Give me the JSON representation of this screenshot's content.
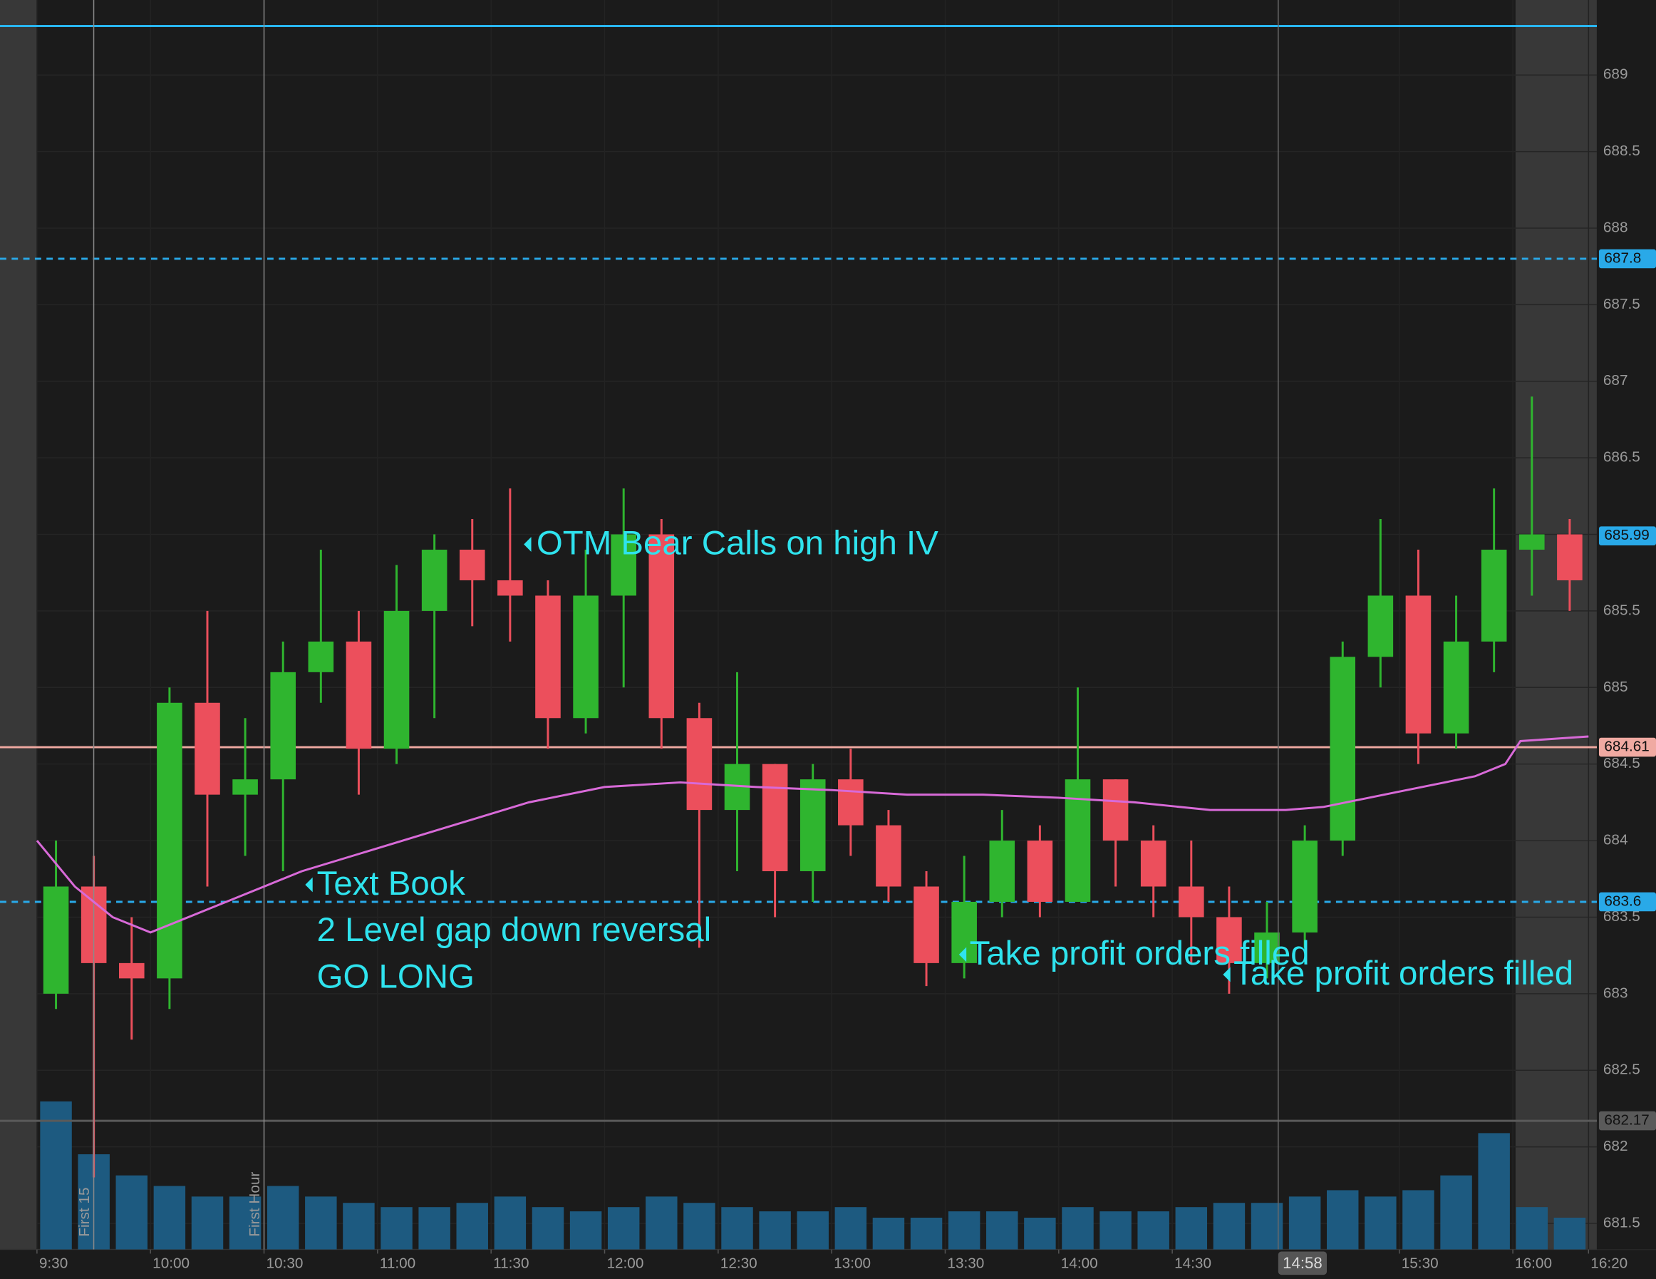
{
  "chart_data": {
    "type": "candlestick",
    "xlim": [
      560.23,
      982.2
    ],
    "ylim": [
      681.33,
      689.49
    ],
    "xticks": [
      {
        "value": 570,
        "label": "9:30"
      },
      {
        "value": 600,
        "label": "10:00"
      },
      {
        "value": 630,
        "label": "10:30"
      },
      {
        "value": 660,
        "label": "11:00"
      },
      {
        "value": 690,
        "label": "11:30"
      },
      {
        "value": 720,
        "label": "12:00"
      },
      {
        "value": 750,
        "label": "12:30"
      },
      {
        "value": 780,
        "label": "13:00"
      },
      {
        "value": 810,
        "label": "13:30"
      },
      {
        "value": 840,
        "label": "14:00"
      },
      {
        "value": 870,
        "label": "14:30"
      },
      {
        "value": 930,
        "label": "15:30"
      },
      {
        "value": 960,
        "label": "16:00"
      },
      {
        "value": 980,
        "label": "16:20"
      }
    ],
    "yticks": [
      681.5,
      682,
      682.5,
      683,
      683.5,
      684,
      684.5,
      685,
      685.5,
      686,
      686.5,
      687,
      687.5,
      688,
      688.5,
      689
    ],
    "grid": true,
    "up_color": "#2fb52f",
    "down_color": "#ec4f5c",
    "volume_color": "#1d5a80",
    "vlim": [
      0,
      100
    ],
    "candles": {
      "x": [
        570,
        580,
        590,
        600,
        610,
        620,
        630,
        640,
        650,
        660,
        670,
        680,
        690,
        700,
        710,
        720,
        730,
        740,
        750,
        760,
        770,
        780,
        790,
        800,
        810,
        820,
        830,
        840,
        850,
        860,
        870,
        880,
        890,
        900,
        910,
        920,
        930,
        940,
        950,
        960,
        970
      ],
      "open": [
        683.0,
        683.7,
        683.2,
        683.1,
        684.9,
        684.3,
        684.4,
        685.1,
        685.3,
        684.6,
        685.5,
        685.9,
        685.7,
        685.6,
        684.8,
        685.6,
        686.0,
        684.8,
        684.2,
        684.5,
        683.8,
        684.4,
        684.1,
        683.7,
        683.2,
        683.6,
        684.0,
        683.6,
        684.4,
        684.0,
        683.7,
        683.5,
        683.2,
        683.4,
        684.0,
        685.2,
        685.6,
        684.7,
        685.3,
        685.9,
        686.0
      ],
      "high": [
        684.0,
        683.9,
        683.5,
        685.0,
        685.5,
        684.8,
        685.3,
        685.9,
        685.5,
        685.8,
        686.0,
        686.1,
        686.3,
        685.7,
        685.9,
        686.3,
        686.1,
        684.9,
        685.1,
        684.5,
        684.5,
        684.6,
        684.2,
        683.8,
        683.9,
        684.2,
        684.1,
        685.0,
        684.4,
        684.1,
        684.0,
        683.7,
        683.6,
        684.1,
        685.3,
        686.1,
        685.9,
        685.6,
        686.3,
        686.9,
        686.1
      ],
      "low": [
        682.9,
        681.8,
        682.7,
        682.9,
        683.7,
        683.9,
        683.8,
        684.9,
        684.3,
        684.5,
        684.8,
        685.4,
        685.3,
        684.6,
        684.7,
        685.0,
        684.6,
        683.3,
        683.8,
        683.5,
        683.6,
        683.9,
        683.6,
        683.05,
        683.1,
        683.5,
        683.5,
        683.6,
        683.7,
        683.5,
        683.2,
        683.0,
        683.1,
        683.3,
        683.9,
        685.0,
        684.5,
        684.6,
        685.1,
        685.6,
        685.5
      ],
      "close": [
        683.7,
        683.2,
        683.1,
        684.9,
        684.3,
        684.4,
        685.1,
        685.3,
        684.6,
        685.5,
        685.9,
        685.7,
        685.6,
        684.8,
        685.6,
        686.0,
        684.8,
        684.2,
        684.5,
        683.8,
        684.4,
        684.1,
        683.7,
        683.2,
        683.6,
        684.0,
        683.6,
        684.4,
        684.0,
        683.7,
        683.5,
        683.2,
        683.4,
        684.0,
        685.2,
        685.6,
        684.7,
        685.3,
        685.9,
        686.0,
        685.7
      ],
      "volume": [
        70,
        45,
        35,
        30,
        25,
        25,
        30,
        25,
        22,
        20,
        20,
        22,
        25,
        20,
        18,
        20,
        25,
        22,
        20,
        18,
        18,
        20,
        15,
        15,
        18,
        18,
        15,
        20,
        18,
        18,
        20,
        22,
        22,
        25,
        28,
        25,
        28,
        35,
        55,
        20,
        15
      ]
    },
    "vwap": {
      "color": "#d86ad8",
      "x": [
        570,
        580,
        590,
        600,
        620,
        640,
        660,
        680,
        700,
        720,
        740,
        760,
        780,
        800,
        820,
        840,
        860,
        880,
        900,
        910,
        930,
        950,
        958,
        962,
        980
      ],
      "values": [
        684.0,
        683.7,
        683.5,
        683.4,
        683.6,
        683.8,
        683.95,
        684.1,
        684.25,
        684.35,
        684.38,
        684.35,
        684.33,
        684.3,
        684.3,
        684.28,
        684.25,
        684.2,
        684.2,
        684.22,
        684.32,
        684.42,
        684.5,
        684.65,
        684.68
      ]
    },
    "levels": [
      {
        "value": 689.32,
        "color": "#29b6f0",
        "style": "solid",
        "tag": false
      },
      {
        "value": 687.8,
        "color": "#29a9e8",
        "style": "dashed",
        "tag": true
      },
      {
        "value": 684.61,
        "color": "#f0aaa2",
        "style": "solid",
        "tag": true
      },
      {
        "value": 683.6,
        "color": "#29a9e8",
        "style": "dashed",
        "tag": true
      },
      {
        "value": 682.17,
        "color": "#5a5a5a",
        "style": "solid",
        "tag": true
      }
    ],
    "last_price": {
      "value": 685.99,
      "color": "#29a9e8"
    },
    "markers": [
      {
        "x": 585,
        "label": "First 15"
      },
      {
        "x": 630,
        "label": "First Hour"
      }
    ],
    "cursor": {
      "x": 898,
      "label": "14:58"
    },
    "annotations": {
      "bear_calls": "OTM Bear Calls on high IV",
      "text_book": [
        "Text Book",
        "2  Level gap down reversal",
        "GO LONG"
      ],
      "take_profit_1": "Take profit orders filled",
      "take_profit_2": "Take profit orders filled"
    }
  }
}
